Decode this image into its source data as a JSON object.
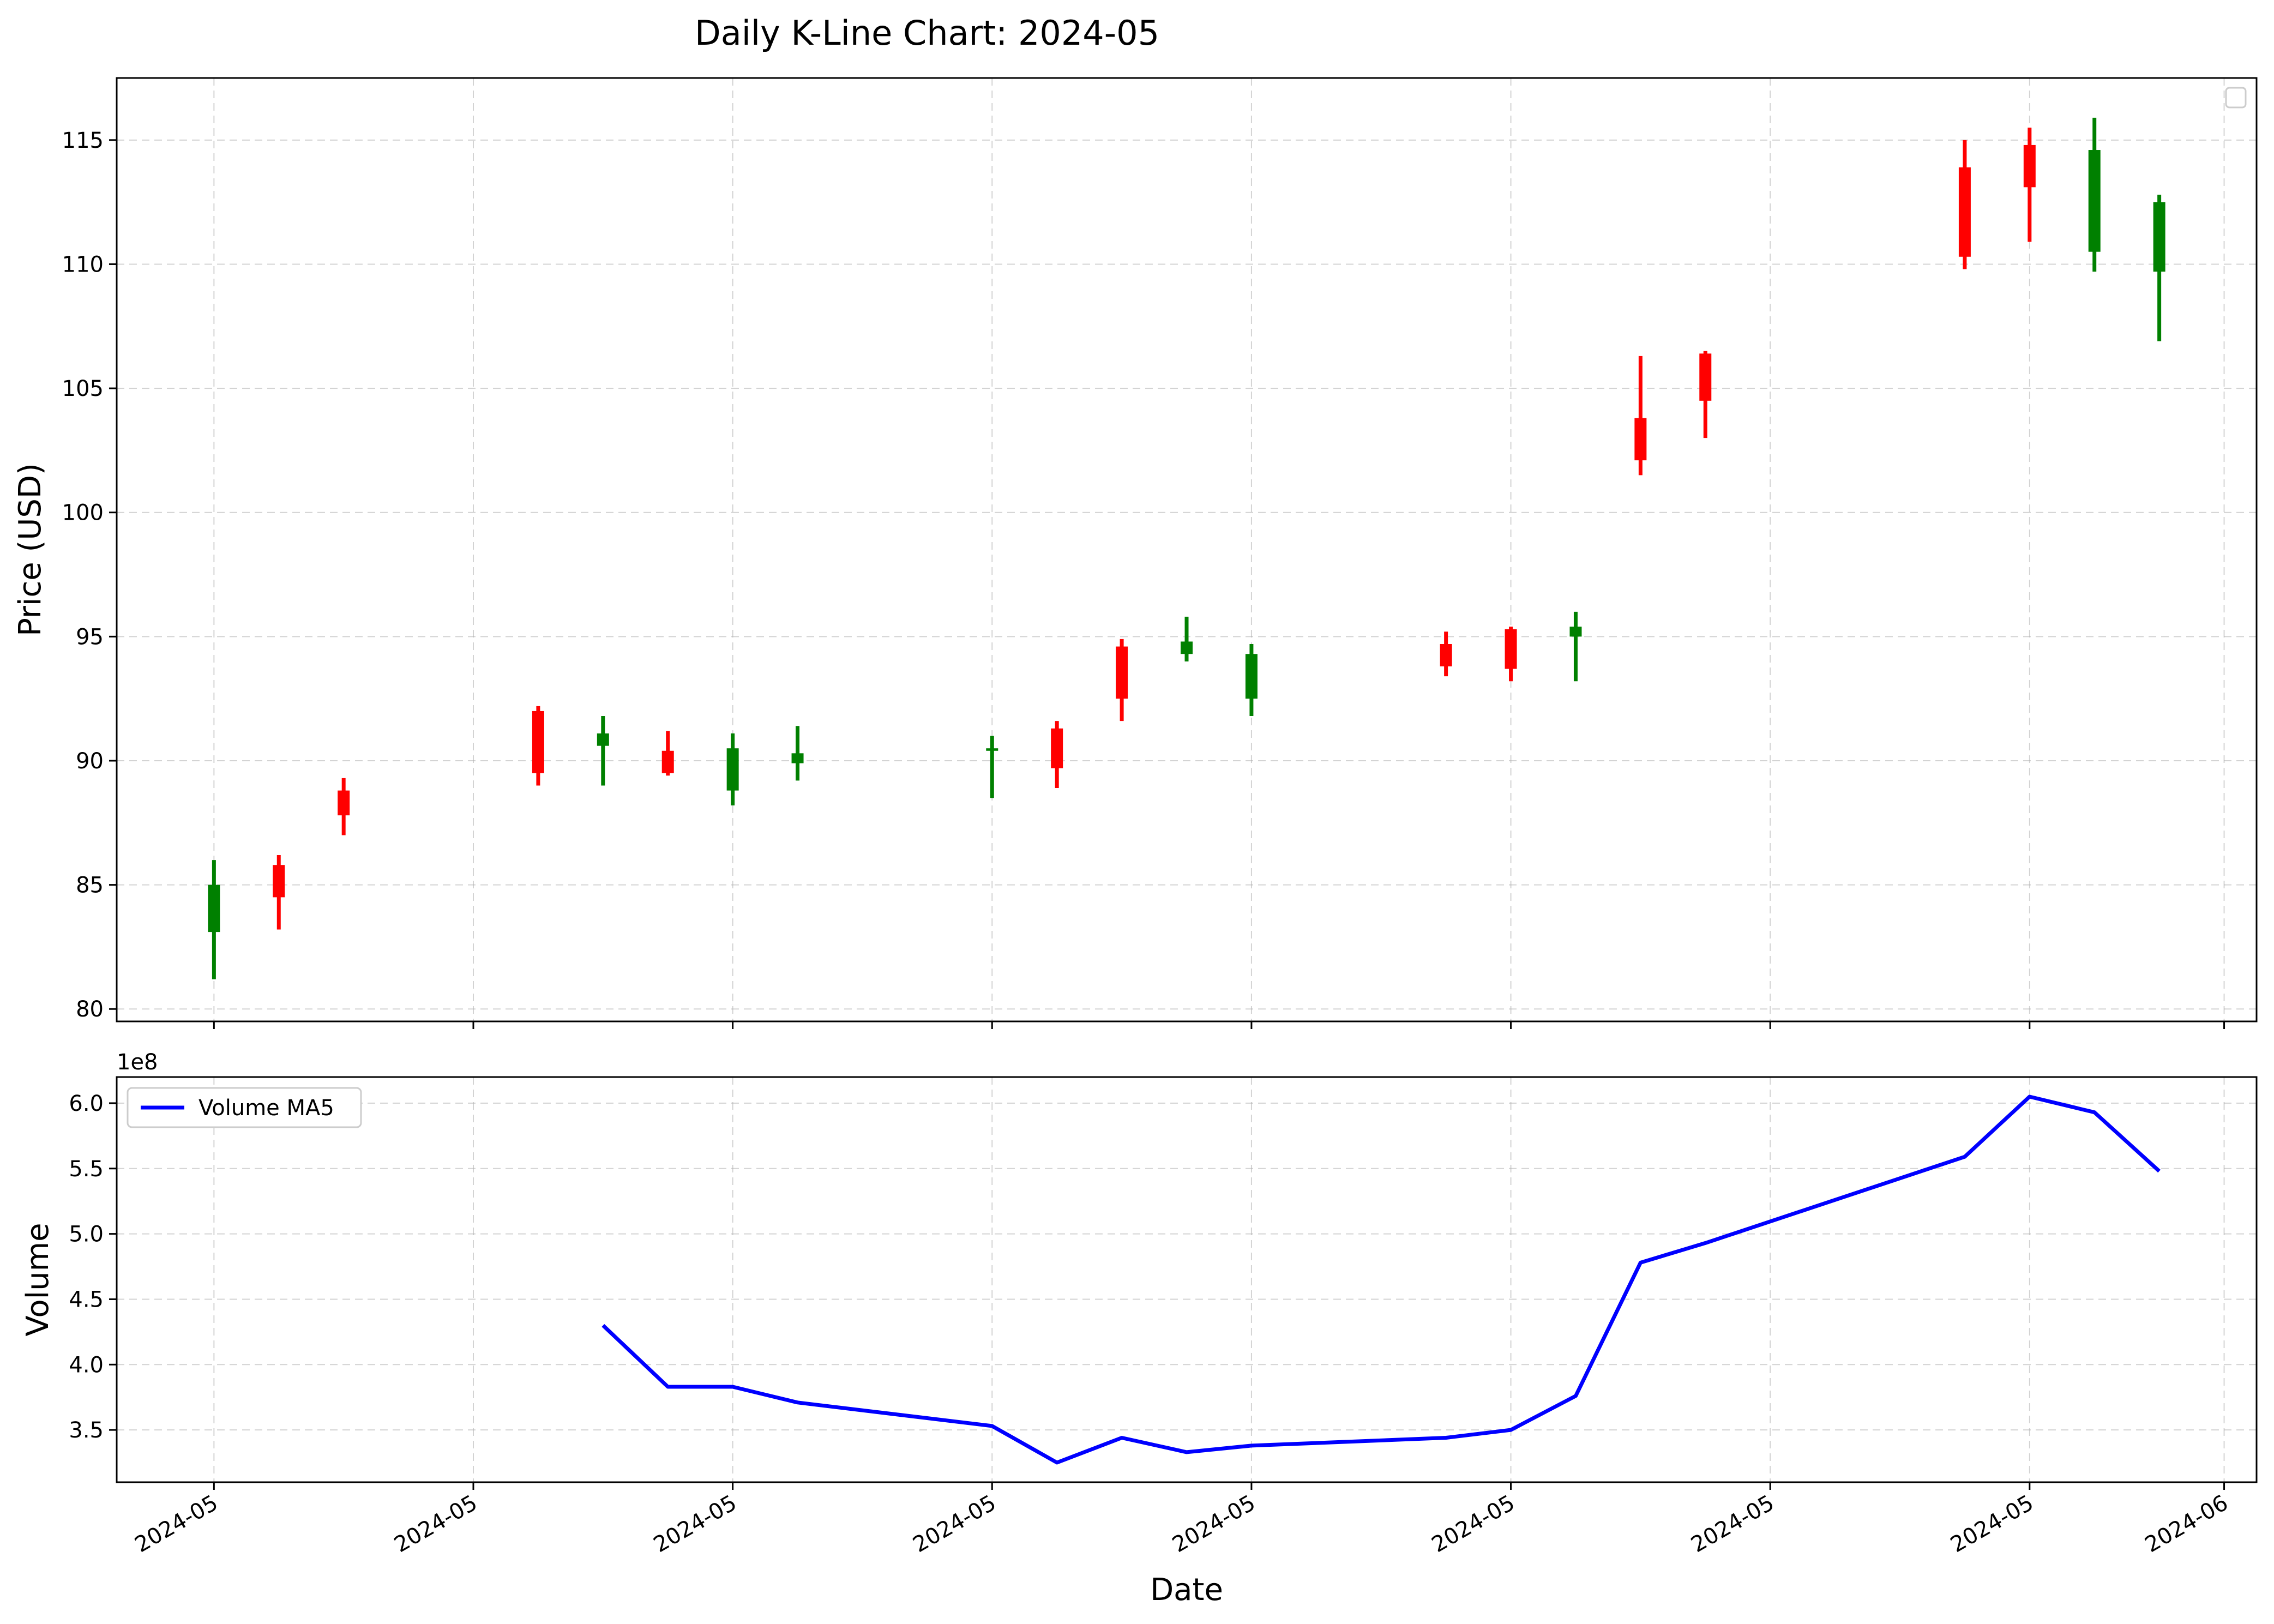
{
  "chart_data": [
    {
      "type": "candlestick",
      "title": "Daily K-Line Chart: 2024-05",
      "ylabel": "Price (USD)",
      "ylim": [
        79.5,
        117.5
      ],
      "yticks": [
        80,
        85,
        90,
        95,
        100,
        105,
        110,
        115
      ],
      "grid": true,
      "legend": "top-right (empty)",
      "colors": {
        "up": "#ff0000",
        "down": "#008000"
      },
      "candles": [
        {
          "date": "2024-05-01",
          "open": 85.0,
          "high": 86.0,
          "low": 81.2,
          "close": 83.1
        },
        {
          "date": "2024-05-02",
          "open": 84.5,
          "high": 86.2,
          "low": 83.2,
          "close": 85.8
        },
        {
          "date": "2024-05-03",
          "open": 87.8,
          "high": 89.3,
          "low": 87.0,
          "close": 88.8
        },
        {
          "date": "2024-05-06",
          "open": 89.5,
          "high": 92.2,
          "low": 89.0,
          "close": 92.0
        },
        {
          "date": "2024-05-07",
          "open": 91.1,
          "high": 91.8,
          "low": 89.0,
          "close": 90.6
        },
        {
          "date": "2024-05-08",
          "open": 89.5,
          "high": 91.2,
          "low": 89.4,
          "close": 90.4
        },
        {
          "date": "2024-05-09",
          "open": 90.5,
          "high": 91.1,
          "low": 88.2,
          "close": 88.8
        },
        {
          "date": "2024-05-10",
          "open": 90.3,
          "high": 91.4,
          "low": 89.2,
          "close": 89.9
        },
        {
          "date": "2024-05-13",
          "open": 90.5,
          "high": 91.0,
          "low": 88.5,
          "close": 90.4
        },
        {
          "date": "2024-05-14",
          "open": 89.7,
          "high": 91.6,
          "low": 88.9,
          "close": 91.3
        },
        {
          "date": "2024-05-15",
          "open": 92.5,
          "high": 94.9,
          "low": 91.6,
          "close": 94.6
        },
        {
          "date": "2024-05-16",
          "open": 94.8,
          "high": 95.8,
          "low": 94.0,
          "close": 94.3
        },
        {
          "date": "2024-05-17",
          "open": 94.3,
          "high": 94.7,
          "low": 91.8,
          "close": 92.5
        },
        {
          "date": "2024-05-20",
          "open": 93.8,
          "high": 95.2,
          "low": 93.4,
          "close": 94.7
        },
        {
          "date": "2024-05-21",
          "open": 93.7,
          "high": 95.4,
          "low": 93.2,
          "close": 95.3
        },
        {
          "date": "2024-05-22",
          "open": 95.4,
          "high": 96.0,
          "low": 93.2,
          "close": 95.0
        },
        {
          "date": "2024-05-23",
          "open": 102.1,
          "high": 106.3,
          "low": 101.5,
          "close": 103.8
        },
        {
          "date": "2024-05-24",
          "open": 104.5,
          "high": 106.5,
          "low": 103.0,
          "close": 106.4
        },
        {
          "date": "2024-05-28",
          "open": 110.3,
          "high": 115.0,
          "low": 109.8,
          "close": 113.9
        },
        {
          "date": "2024-05-29",
          "open": 113.1,
          "high": 115.5,
          "low": 110.9,
          "close": 114.8
        },
        {
          "date": "2024-05-30",
          "open": 114.6,
          "high": 115.9,
          "low": 109.7,
          "close": 110.5
        },
        {
          "date": "2024-05-31",
          "open": 112.5,
          "high": 112.8,
          "low": 106.9,
          "close": 109.7
        }
      ]
    },
    {
      "type": "line",
      "ylabel": "Volume",
      "xlabel": "Date",
      "offset_label": "1e8",
      "ylim": [
        3.1,
        6.2
      ],
      "yticks": [
        3.5,
        4.0,
        4.5,
        5.0,
        5.5,
        6.0
      ],
      "grid": true,
      "legend": "top-left",
      "x_range": [
        "2024-04-29T12:00",
        "2024-06-01T12:00"
      ],
      "xticks": [
        {
          "date": "2024-05-01",
          "label": "2024-05"
        },
        {
          "date": "2024-05-05",
          "label": "2024-05"
        },
        {
          "date": "2024-05-09",
          "label": "2024-05"
        },
        {
          "date": "2024-05-13",
          "label": "2024-05"
        },
        {
          "date": "2024-05-17",
          "label": "2024-05"
        },
        {
          "date": "2024-05-21",
          "label": "2024-05"
        },
        {
          "date": "2024-05-25",
          "label": "2024-05"
        },
        {
          "date": "2024-05-29",
          "label": "2024-05"
        },
        {
          "date": "2024-06-01",
          "label": "2024-06"
        }
      ],
      "series": [
        {
          "name": "Volume MA5",
          "color": "#0000ff",
          "points": [
            {
              "date": "2024-05-07",
              "value": 4.3
            },
            {
              "date": "2024-05-08",
              "value": 3.83
            },
            {
              "date": "2024-05-09",
              "value": 3.83
            },
            {
              "date": "2024-05-10",
              "value": 3.71
            },
            {
              "date": "2024-05-13",
              "value": 3.53
            },
            {
              "date": "2024-05-14",
              "value": 3.25
            },
            {
              "date": "2024-05-15",
              "value": 3.44
            },
            {
              "date": "2024-05-16",
              "value": 3.33
            },
            {
              "date": "2024-05-17",
              "value": 3.38
            },
            {
              "date": "2024-05-20",
              "value": 3.44
            },
            {
              "date": "2024-05-21",
              "value": 3.5
            },
            {
              "date": "2024-05-22",
              "value": 3.76
            },
            {
              "date": "2024-05-23",
              "value": 4.78
            },
            {
              "date": "2024-05-24",
              "value": 4.93
            },
            {
              "date": "2024-05-28",
              "value": 5.59
            },
            {
              "date": "2024-05-29",
              "value": 6.05
            },
            {
              "date": "2024-05-30",
              "value": 5.93
            },
            {
              "date": "2024-05-31",
              "value": 5.48
            }
          ]
        }
      ]
    }
  ]
}
